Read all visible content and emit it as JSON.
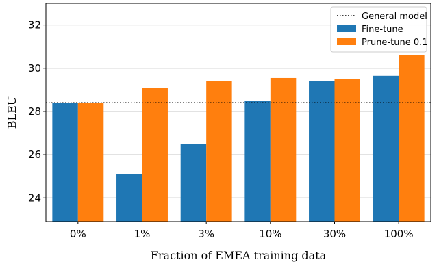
{
  "chart_data": {
    "type": "bar",
    "title": "",
    "xlabel": "Fraction of EMEA training data",
    "ylabel": "BLEU",
    "categories": [
      "0%",
      "1%",
      "3%",
      "10%",
      "30%",
      "100%"
    ],
    "series": [
      {
        "name": "Fine-tune",
        "color": "#1f77b4",
        "values": [
          28.4,
          25.1,
          26.5,
          28.5,
          29.4,
          29.65
        ]
      },
      {
        "name": "Prune-tune 0.1",
        "color": "#ff7f0e",
        "values": [
          28.4,
          29.1,
          29.4,
          29.55,
          29.5,
          30.6
        ]
      }
    ],
    "reference_line": {
      "name": "General model",
      "value": 28.4,
      "style": "dotted",
      "color": "#000000"
    },
    "ylim": [
      22.9,
      33.0
    ],
    "yticks": [
      24,
      26,
      28,
      30,
      32
    ],
    "grid": "horizontal",
    "legend_position": "top-right"
  }
}
